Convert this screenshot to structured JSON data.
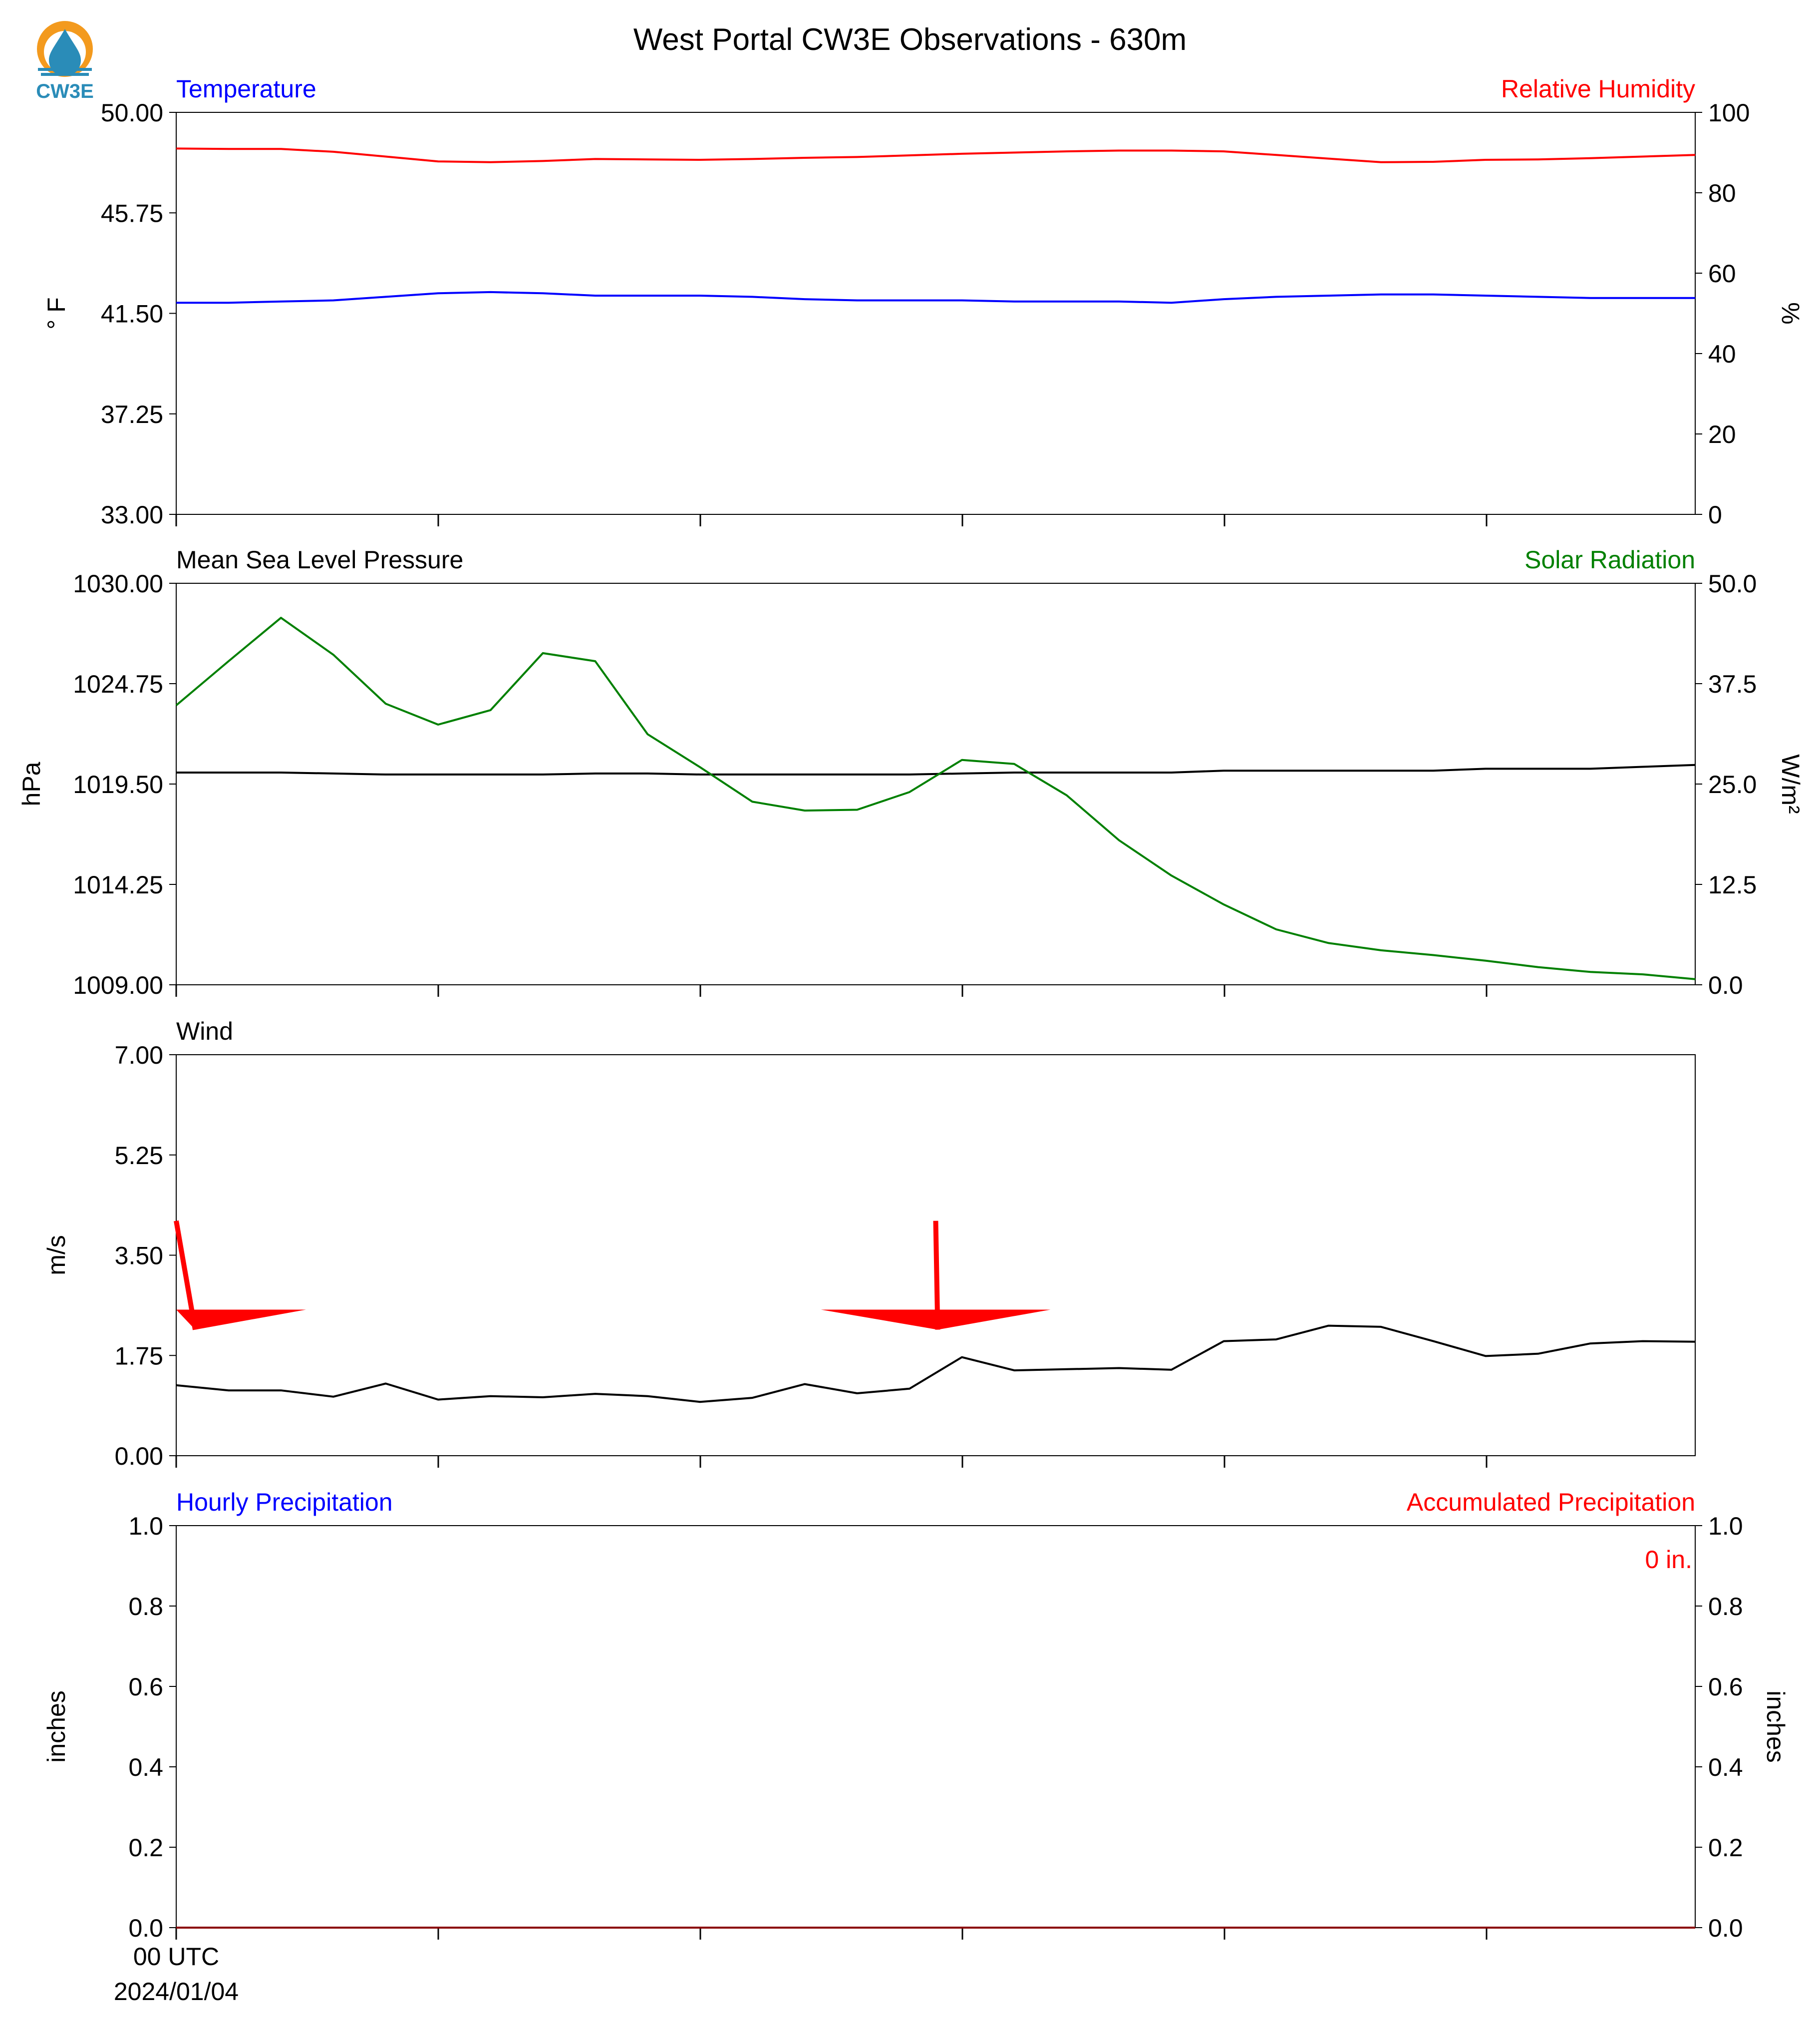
{
  "figure_title": "West Portal CW3E Observations - 630m",
  "logo": {
    "text": "CW3E",
    "colors": {
      "sun": "#F39A1E",
      "drop": "#2A8CB8",
      "text": "#2A8CB8"
    }
  },
  "x_axis": {
    "tick_labels": [
      "00 UTC",
      "2024/01/04"
    ]
  },
  "colors": {
    "temperature": "#0000FF",
    "humidity": "#FF0000",
    "pressure": "#000000",
    "solar": "#008000",
    "wind": "#000000",
    "barb": "#FF0000",
    "hourly": "#0000FF",
    "accum": "#FF0000"
  },
  "chart_data": [
    {
      "type": "line",
      "panel": "temperature-humidity",
      "left_title": "Temperature",
      "right_title": "Relative Humidity",
      "ylabel_left": "° F",
      "ylabel_right": "%",
      "ylim_left": [
        33,
        50
      ],
      "ylim_right": [
        0,
        100
      ],
      "yticks_left": [
        "33.00",
        "37.25",
        "41.50",
        "45.75",
        "50.00"
      ],
      "yticks_right": [
        "0",
        "20",
        "40",
        "60",
        "80",
        "100"
      ],
      "x": [
        0,
        1,
        2,
        3,
        4,
        5,
        6,
        7,
        8,
        9,
        10,
        11,
        12,
        13,
        14,
        15,
        16,
        17,
        18,
        19,
        20,
        21,
        22,
        23,
        24,
        25,
        26,
        27,
        28,
        29
      ],
      "series": [
        {
          "name": "Temperature",
          "axis": "left",
          "values": [
            41.95,
            41.95,
            42.0,
            42.05,
            42.2,
            42.35,
            42.4,
            42.35,
            42.25,
            42.25,
            42.25,
            42.2,
            42.1,
            42.05,
            42.05,
            42.05,
            42.0,
            42.0,
            42.0,
            41.95,
            42.1,
            42.2,
            42.25,
            42.3,
            42.3,
            42.25,
            42.2,
            42.15,
            42.15,
            42.15
          ]
        },
        {
          "name": "Relative Humidity",
          "axis": "right",
          "values": [
            91.0,
            90.9,
            90.9,
            90.2,
            89.0,
            87.8,
            87.6,
            87.9,
            88.4,
            88.3,
            88.2,
            88.4,
            88.7,
            88.9,
            89.3,
            89.7,
            90.0,
            90.3,
            90.5,
            90.5,
            90.3,
            89.4,
            88.5,
            87.6,
            87.7,
            88.2,
            88.3,
            88.6,
            89.0,
            89.4
          ]
        }
      ]
    },
    {
      "type": "line",
      "panel": "pressure-solar",
      "left_title": "Mean Sea Level Pressure",
      "right_title": "Solar Radiation",
      "ylabel_left": "hPa",
      "ylabel_right": "W/m²",
      "ylim_left": [
        1009,
        1030
      ],
      "ylim_right": [
        0,
        50
      ],
      "yticks_left": [
        "1009.00",
        "1014.25",
        "1019.50",
        "1024.75",
        "1030.00"
      ],
      "yticks_right": [
        "0.0",
        "12.5",
        "25.0",
        "37.5",
        "50.0"
      ],
      "x": [
        0,
        1,
        2,
        3,
        4,
        5,
        6,
        7,
        8,
        9,
        10,
        11,
        12,
        13,
        14,
        15,
        16,
        17,
        18,
        19,
        20,
        21,
        22,
        23,
        24,
        25,
        26,
        27,
        28,
        29
      ],
      "series": [
        {
          "name": "Mean Sea Level Pressure",
          "axis": "left",
          "values": [
            1020.1,
            1020.1,
            1020.1,
            1020.05,
            1020.0,
            1020.0,
            1020.0,
            1020.0,
            1020.05,
            1020.05,
            1020.0,
            1020.0,
            1020.0,
            1020.0,
            1020.0,
            1020.05,
            1020.1,
            1020.1,
            1020.1,
            1020.1,
            1020.2,
            1020.2,
            1020.2,
            1020.2,
            1020.2,
            1020.3,
            1020.3,
            1020.3,
            1020.4,
            1020.5
          ]
        },
        {
          "name": "Solar Radiation",
          "axis": "right",
          "values": [
            34.8,
            40.3,
            45.7,
            41.1,
            35.0,
            32.4,
            34.2,
            41.3,
            40.3,
            31.2,
            27.1,
            22.8,
            21.7,
            21.8,
            24.0,
            28.0,
            27.5,
            23.6,
            18.0,
            13.6,
            10.0,
            6.9,
            5.2,
            4.3,
            3.7,
            3.0,
            2.2,
            1.6,
            1.3,
            0.7
          ]
        }
      ]
    },
    {
      "type": "line",
      "panel": "wind",
      "left_title": "Wind",
      "ylabel_left": "m/s",
      "ylim_left": [
        0,
        7
      ],
      "yticks_left": [
        "0.00",
        "1.75",
        "3.50",
        "5.25",
        "7.00"
      ],
      "x": [
        0,
        1,
        2,
        3,
        4,
        5,
        6,
        7,
        8,
        9,
        10,
        11,
        12,
        13,
        14,
        15,
        16,
        17,
        18,
        19,
        20,
        21,
        22,
        23,
        24,
        25,
        26,
        27,
        28,
        29
      ],
      "series": [
        {
          "name": "Wind",
          "axis": "left",
          "values": [
            1.23,
            1.14,
            1.14,
            1.03,
            1.26,
            0.98,
            1.04,
            1.02,
            1.08,
            1.04,
            0.94,
            1.01,
            1.25,
            1.09,
            1.17,
            1.72,
            1.49,
            1.51,
            1.53,
            1.5,
            2.0,
            2.03,
            2.27,
            2.25,
            2.0,
            1.74,
            1.78,
            1.96,
            2.0,
            1.99
          ]
        }
      ],
      "barbs": [
        {
          "x": 0,
          "speed_ms": 2.5,
          "direction_deg": 355
        },
        {
          "x": 14.5,
          "speed_ms": 2.5,
          "direction_deg": 359
        }
      ]
    },
    {
      "type": "bar",
      "panel": "precipitation",
      "left_title": "Hourly Precipitation",
      "right_title": "Accumulated Precipitation",
      "ylabel_left": "inches",
      "ylabel_right": "inches",
      "ylim_left": [
        0,
        1
      ],
      "ylim_right": [
        0,
        1
      ],
      "yticks_left": [
        "0.0",
        "0.2",
        "0.4",
        "0.6",
        "0.8",
        "1.0"
      ],
      "yticks_right": [
        "0.0",
        "0.2",
        "0.4",
        "0.6",
        "0.8",
        "1.0"
      ],
      "total_label": "0 in.",
      "x": [
        0,
        1,
        2,
        3,
        4,
        5,
        6,
        7,
        8,
        9,
        10,
        11,
        12,
        13,
        14,
        15,
        16,
        17,
        18,
        19,
        20,
        21,
        22,
        23,
        24,
        25,
        26,
        27,
        28,
        29
      ],
      "series": [
        {
          "name": "Hourly Precipitation",
          "axis": "left",
          "values": [
            0,
            0,
            0,
            0,
            0,
            0,
            0,
            0,
            0,
            0,
            0,
            0,
            0,
            0,
            0,
            0,
            0,
            0,
            0,
            0,
            0,
            0,
            0,
            0,
            0,
            0,
            0,
            0,
            0,
            0
          ]
        },
        {
          "name": "Accumulated Precipitation",
          "axis": "right",
          "values": [
            0,
            0,
            0,
            0,
            0,
            0,
            0,
            0,
            0,
            0,
            0,
            0,
            0,
            0,
            0,
            0,
            0,
            0,
            0,
            0,
            0,
            0,
            0,
            0,
            0,
            0,
            0,
            0,
            0,
            0
          ]
        }
      ]
    }
  ]
}
